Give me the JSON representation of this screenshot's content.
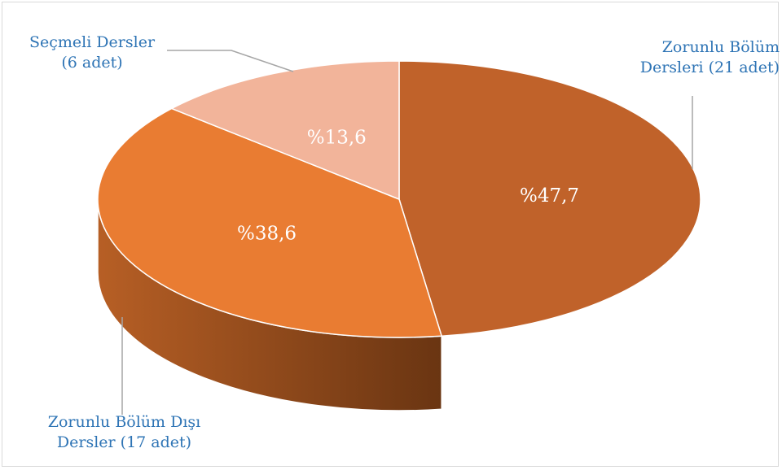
{
  "chart_data": {
    "type": "pie",
    "title": "",
    "slices": [
      {
        "label_lines": [
          "Zorunlu Bölüm",
          "Dersleri (21 adet)"
        ],
        "count": 21,
        "percent_label": "%47,7",
        "value": 47.7,
        "color": "#c0622a",
        "side_dark": "#4a2610"
      },
      {
        "label_lines": [
          "Zorunlu Bölüm Dışı",
          "Dersler (17 adet)"
        ],
        "count": 17,
        "percent_label": "%38,6",
        "value": 38.6,
        "color": "#e97c32",
        "side_dark": "#7a3c14"
      },
      {
        "label_lines": [
          "Seçmeli Dersler",
          "(6 adet)"
        ],
        "count": 6,
        "percent_label": "%13,6",
        "value": 13.6,
        "color": "#f2b49a",
        "side_dark": "#c88a70"
      }
    ],
    "label_color": "#2e74b5",
    "percent_label_color": "#ffffff"
  }
}
